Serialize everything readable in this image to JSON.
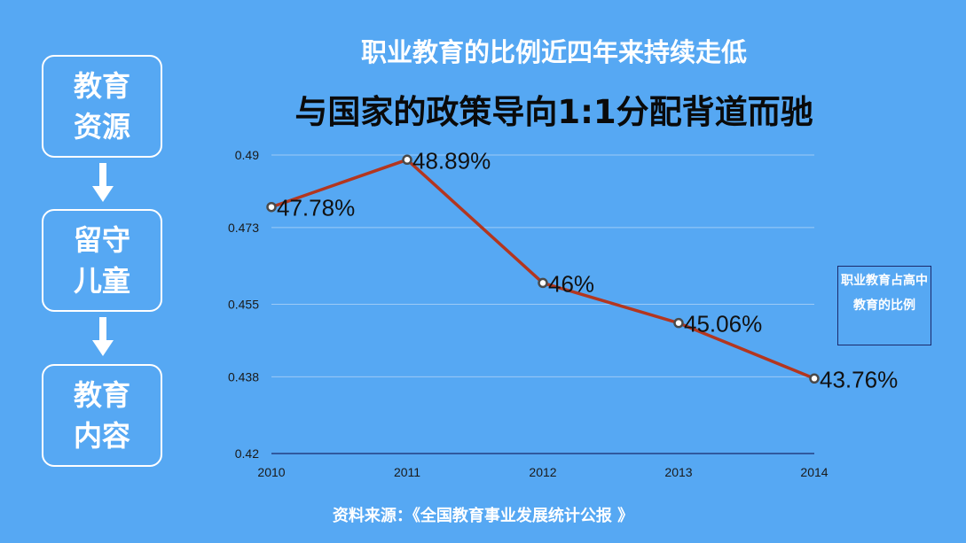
{
  "flow": {
    "items": [
      {
        "label": "教育资源"
      },
      {
        "label": "留守儿童"
      },
      {
        "label": "教育内容"
      }
    ]
  },
  "header": {
    "title": "职业教育的比例近四年来持续走低",
    "subtitle": "与国家的政策导向1:1分配背道而驰"
  },
  "footer": {
    "source": "资料来源：《全国教育事业发展统计公报 》"
  },
  "colors": {
    "background": "#56a8f3",
    "line": "#b3361f",
    "grid": "#9dcaf6",
    "point_fill": "#ffffff",
    "point_stroke": "#4a4a4a"
  },
  "chart_data": {
    "type": "line",
    "title": "",
    "xlabel": "",
    "ylabel": "",
    "categories": [
      "2010",
      "2011",
      "2012",
      "2013",
      "2014"
    ],
    "series": [
      {
        "name": "职业教育占高中教育的比例",
        "values": [
          0.4778,
          0.4889,
          0.46,
          0.4506,
          0.4376
        ],
        "labels": [
          "47.78%",
          "48.89%",
          "46%",
          "45.06%",
          "43.76%"
        ]
      }
    ],
    "yticks": [
      0.42,
      0.438,
      0.455,
      0.473,
      0.49
    ],
    "ytick_labels": [
      "0.42",
      "0.438",
      "0.455",
      "0.473",
      "0.49"
    ],
    "ylim": [
      0.42,
      0.49
    ],
    "grid": true,
    "legend_position": "right"
  }
}
